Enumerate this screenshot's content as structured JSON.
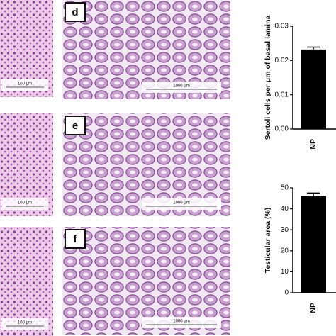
{
  "panels": [
    {
      "scale_bar": "100 μm"
    },
    {
      "label": "d",
      "scale_bar": "1000 μm"
    },
    {
      "scale_bar": "100 μm"
    },
    {
      "label": "e",
      "scale_bar": "1000 μm"
    },
    {
      "scale_bar": "100 μm"
    },
    {
      "label": "f",
      "scale_bar": "1000 μm"
    }
  ],
  "chart_data": [
    {
      "type": "bar",
      "ylabel": "Sertoli cells per μm of basal lamina",
      "categories": [
        "NP"
      ],
      "values": [
        0.0232
      ],
      "errors": [
        0.0007
      ],
      "color": "#000000",
      "ylim": [
        0,
        0.03
      ],
      "yticks": [
        {
          "value": 0,
          "label": "0.00"
        },
        {
          "value": 0.01,
          "label": "0.01"
        },
        {
          "value": 0.02,
          "label": "0.02"
        },
        {
          "value": 0.03,
          "label": "0.03"
        }
      ]
    },
    {
      "type": "bar",
      "ylabel": "Testicular area (%)",
      "categories": [
        "NP"
      ],
      "values": [
        46
      ],
      "errors": [
        1.5
      ],
      "color": "#000000",
      "ylim": [
        0,
        50
      ],
      "yticks": [
        0,
        10,
        20,
        30,
        40,
        50
      ]
    }
  ]
}
